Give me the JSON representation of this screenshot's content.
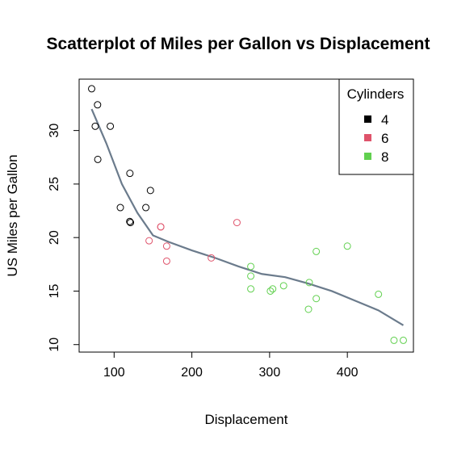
{
  "chart_data": {
    "type": "scatter",
    "title": "Scatterplot of Miles per Gallon vs Displacement",
    "xlabel": "Displacement",
    "ylabel": "US Miles per Gallon",
    "xlim": [
      55,
      485
    ],
    "ylim": [
      9.3,
      34.8
    ],
    "xticks": [
      100,
      200,
      300,
      400
    ],
    "yticks": [
      10,
      15,
      20,
      25,
      30
    ],
    "grid": false,
    "legend": {
      "title": "Cylinders",
      "position": "top-right"
    },
    "series": [
      {
        "name": "4",
        "color": "#000000",
        "points": [
          [
            71.1,
            33.9
          ],
          [
            78.7,
            32.4
          ],
          [
            75.7,
            30.4
          ],
          [
            95.1,
            30.4
          ],
          [
            79.0,
            27.3
          ],
          [
            120.3,
            26.0
          ],
          [
            146.7,
            24.4
          ],
          [
            108.0,
            22.8
          ],
          [
            140.8,
            22.8
          ],
          [
            120.1,
            21.5
          ],
          [
            121.0,
            21.4
          ]
        ]
      },
      {
        "name": "6",
        "color": "#DF536B",
        "points": [
          [
            160.0,
            21.0
          ],
          [
            160.0,
            21.0
          ],
          [
            258.0,
            21.4
          ],
          [
            225.0,
            18.1
          ],
          [
            167.6,
            19.2
          ],
          [
            167.6,
            17.8
          ],
          [
            145.0,
            19.7
          ]
        ]
      },
      {
        "name": "8",
        "color": "#61D04F",
        "points": [
          [
            360.0,
            18.7
          ],
          [
            360.0,
            14.3
          ],
          [
            275.8,
            16.4
          ],
          [
            275.8,
            17.3
          ],
          [
            275.8,
            15.2
          ],
          [
            472.0,
            10.4
          ],
          [
            460.0,
            10.4
          ],
          [
            440.0,
            14.7
          ],
          [
            318.0,
            15.5
          ],
          [
            304.0,
            15.2
          ],
          [
            350.0,
            13.3
          ],
          [
            400.0,
            19.2
          ],
          [
            351.0,
            15.8
          ],
          [
            301.0,
            15.0
          ]
        ]
      }
    ],
    "smooth_line": {
      "color": "#6B7B8C",
      "points": [
        [
          71.1,
          32.0
        ],
        [
          90,
          28.8
        ],
        [
          110,
          25.0
        ],
        [
          130,
          22.3
        ],
        [
          150,
          20.2
        ],
        [
          170,
          19.6
        ],
        [
          200,
          18.8
        ],
        [
          230,
          18.1
        ],
        [
          260,
          17.3
        ],
        [
          290,
          16.6
        ],
        [
          320,
          16.3
        ],
        [
          350,
          15.7
        ],
        [
          380,
          15.0
        ],
        [
          410,
          14.1
        ],
        [
          440,
          13.2
        ],
        [
          472,
          11.8
        ]
      ]
    }
  }
}
